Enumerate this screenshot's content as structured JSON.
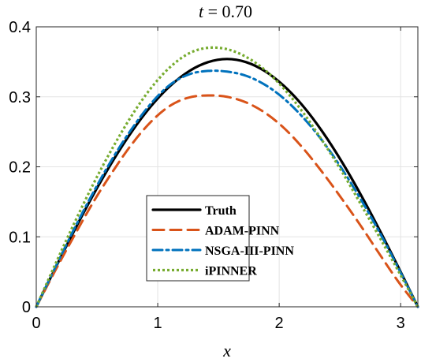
{
  "chart_data": {
    "type": "line",
    "title": "t = 0.70",
    "title_var": "t",
    "title_value": " = 0.70",
    "xlabel": "x",
    "ylabel": "",
    "xlim": [
      0,
      3.1416
    ],
    "ylim": [
      0,
      0.4
    ],
    "xticks": [
      0,
      1,
      2,
      3
    ],
    "xtick_labels": [
      "0",
      "1",
      "2",
      "3"
    ],
    "yticks": [
      0,
      0.1,
      0.2,
      0.3,
      0.4
    ],
    "ytick_labels": [
      "0",
      "0.1",
      "0.2",
      "0.3",
      "0.4"
    ],
    "grid": true,
    "legend_position": "lower-center",
    "x": [
      0,
      0.1571,
      0.3142,
      0.4712,
      0.6283,
      0.7854,
      0.9425,
      1.0996,
      1.2566,
      1.4137,
      1.5708,
      1.7279,
      1.885,
      2.042,
      2.1991,
      2.3562,
      2.5133,
      2.6704,
      2.8274,
      2.9845,
      3.1416
    ],
    "series": [
      {
        "name": "Truth",
        "color": "#000000",
        "dash": "solid",
        "values": [
          0,
          0.0553,
          0.1093,
          0.1606,
          0.2079,
          0.2501,
          0.2862,
          0.3151,
          0.3364,
          0.3495,
          0.354,
          0.3495,
          0.3364,
          0.3151,
          0.2862,
          0.2501,
          0.2079,
          0.1606,
          0.1093,
          0.0553,
          0
        ]
      },
      {
        "name": "ADAM-PINN",
        "color": "#D95319",
        "dash": "dashed",
        "values": [
          0,
          0.052,
          0.102,
          0.15,
          0.193,
          0.232,
          0.264,
          0.287,
          0.299,
          0.302,
          0.3,
          0.292,
          0.277,
          0.255,
          0.226,
          0.192,
          0.155,
          0.116,
          0.075,
          0.035,
          0
        ]
      },
      {
        "name": "NSGA-III-PINN",
        "color": "#0072BD",
        "dash": "dashdot",
        "values": [
          0,
          0.0565,
          0.112,
          0.164,
          0.212,
          0.254,
          0.29,
          0.317,
          0.332,
          0.337,
          0.336,
          0.33,
          0.317,
          0.297,
          0.27,
          0.237,
          0.198,
          0.154,
          0.106,
          0.054,
          0
        ]
      },
      {
        "name": "iPINNER",
        "color": "#77AC30",
        "dash": "dotted",
        "values": [
          0,
          0.061,
          0.12,
          0.176,
          0.227,
          0.273,
          0.312,
          0.342,
          0.362,
          0.37,
          0.368,
          0.357,
          0.338,
          0.311,
          0.277,
          0.237,
          0.194,
          0.147,
          0.099,
          0.05,
          0
        ]
      }
    ]
  }
}
